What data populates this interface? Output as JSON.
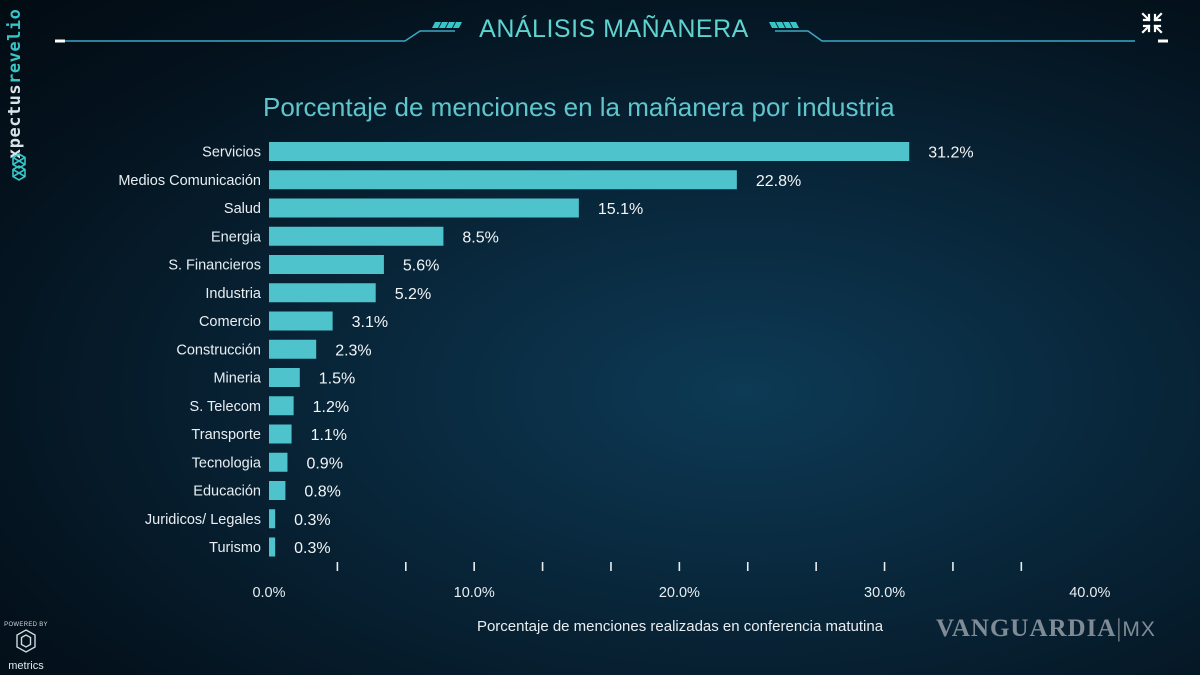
{
  "header": {
    "title": "ANÁLISIS MAÑANERA"
  },
  "brand": {
    "name_part1": "xpectus",
    "name_part2": "revelio"
  },
  "footer": {
    "powered_by": "POWERED BY",
    "powered_name": "metrics",
    "watermark_main": "VANGUARDIA",
    "watermark_sep": "|",
    "watermark_mx": "MX"
  },
  "colors": {
    "accent": "#5ec6cc",
    "bar": "#4fc3cc",
    "background": "#082437"
  },
  "icons": {
    "collapse": "collapse-arrows-icon",
    "brand_logo": "hexagon-cluster-icon",
    "powered_logo": "hexagon-outline-icon"
  },
  "chart_data": {
    "type": "bar",
    "orientation": "horizontal",
    "title": "Porcentaje de menciones en la mañanera por industria",
    "xlabel": "Porcentaje de menciones realizadas en conferencia matutina",
    "ylabel": "",
    "categories": [
      "Servicios",
      "Medios Comunicación",
      "Salud",
      "Energia",
      "S. Financieros",
      "Industria",
      "Comercio",
      "Construcción",
      "Mineria",
      "S. Telecom",
      "Transporte",
      "Tecnologia",
      "Educación",
      "Juridicos/ Legales",
      "Turismo"
    ],
    "values": [
      31.2,
      22.8,
      15.1,
      8.5,
      5.6,
      5.2,
      3.1,
      2.3,
      1.5,
      1.2,
      1.1,
      0.9,
      0.8,
      0.3,
      0.3
    ],
    "value_labels": [
      "31.2%",
      "22.8%",
      "15.1%",
      "8.5%",
      "5.6%",
      "5.2%",
      "3.1%",
      "2.3%",
      "1.5%",
      "1.2%",
      "1.1%",
      "0.9%",
      "0.8%",
      "0.3%",
      "0.3%"
    ],
    "xlim": [
      0,
      40
    ],
    "xtick_labels": [
      "0.0%",
      "10.0%",
      "20.0%",
      "30.0%",
      "40.0%"
    ],
    "xtick_values": [
      0,
      10,
      20,
      30,
      40
    ],
    "minor_tick_step": 3.333,
    "grid": false,
    "legend": "none"
  }
}
